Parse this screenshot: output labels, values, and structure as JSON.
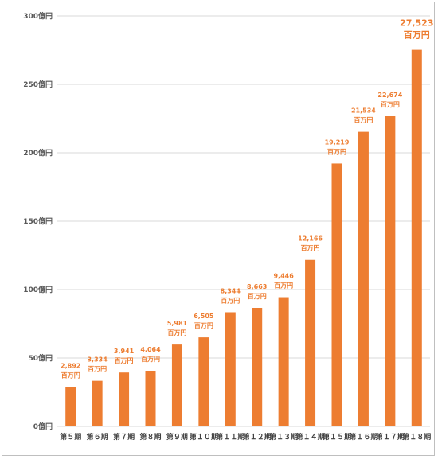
{
  "chart_data": {
    "type": "bar",
    "categories": [
      "第５期",
      "第６期",
      "第７期",
      "第８期",
      "第９期",
      "第１０期",
      "第１１期",
      "第１２期",
      "第１３期",
      "第１４期",
      "第１５期",
      "第１６期",
      "第１７期",
      "第１８期"
    ],
    "values": [
      2892,
      3334,
      3941,
      4064,
      5981,
      6505,
      8344,
      8663,
      9446,
      12166,
      19219,
      21534,
      22674,
      27523
    ],
    "data_labels": [
      "2,892",
      "3,334",
      "3,941",
      "4,064",
      "5,981",
      "6,505",
      "8,344",
      "8,663",
      "9,446",
      "12,166",
      "19,219",
      "21,534",
      "22,674",
      "27,523"
    ],
    "data_label_unit": "百万円",
    "y_ticks": [
      "0億円",
      "50億円",
      "100億円",
      "150億円",
      "200億円",
      "250億円",
      "300億円"
    ],
    "ylim": [
      0,
      30000
    ],
    "grid": true,
    "bar_color": "#ed7d31",
    "title": "",
    "xlabel": "",
    "ylabel": ""
  }
}
